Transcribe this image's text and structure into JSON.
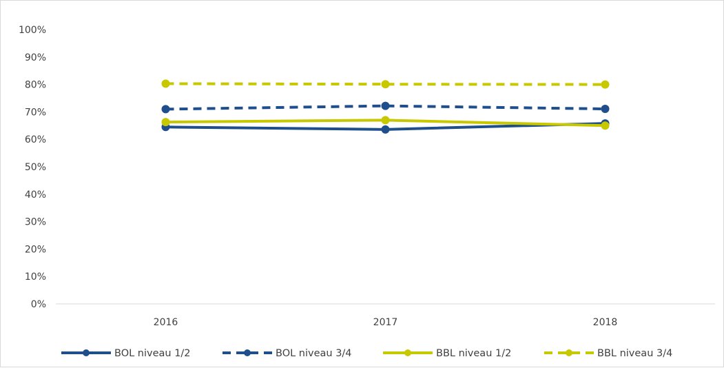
{
  "chart_data": {
    "type": "line",
    "title": "",
    "xlabel": "",
    "ylabel": "",
    "categories": [
      "2016",
      "2017",
      "2018"
    ],
    "y_ticks": [
      "0%",
      "10%",
      "20%",
      "30%",
      "40%",
      "50%",
      "60%",
      "70%",
      "80%",
      "90%",
      "100%"
    ],
    "ylim": [
      0,
      100
    ],
    "grid": false,
    "legend_position": "bottom",
    "series": [
      {
        "name": "BOL niveau 1/2",
        "values": [
          64.5,
          63.6,
          65.8
        ],
        "color": "#1f4e8c",
        "dashed": false
      },
      {
        "name": "BOL niveau 3/4",
        "values": [
          71.0,
          72.2,
          71.1
        ],
        "color": "#1f4e8c",
        "dashed": true
      },
      {
        "name": "BBL niveau 1/2",
        "values": [
          66.3,
          67.0,
          65.0
        ],
        "color": "#c8c800",
        "dashed": false
      },
      {
        "name": "BBL niveau 3/4",
        "values": [
          80.3,
          80.1,
          80.0
        ],
        "color": "#c8c800",
        "dashed": true
      }
    ]
  }
}
